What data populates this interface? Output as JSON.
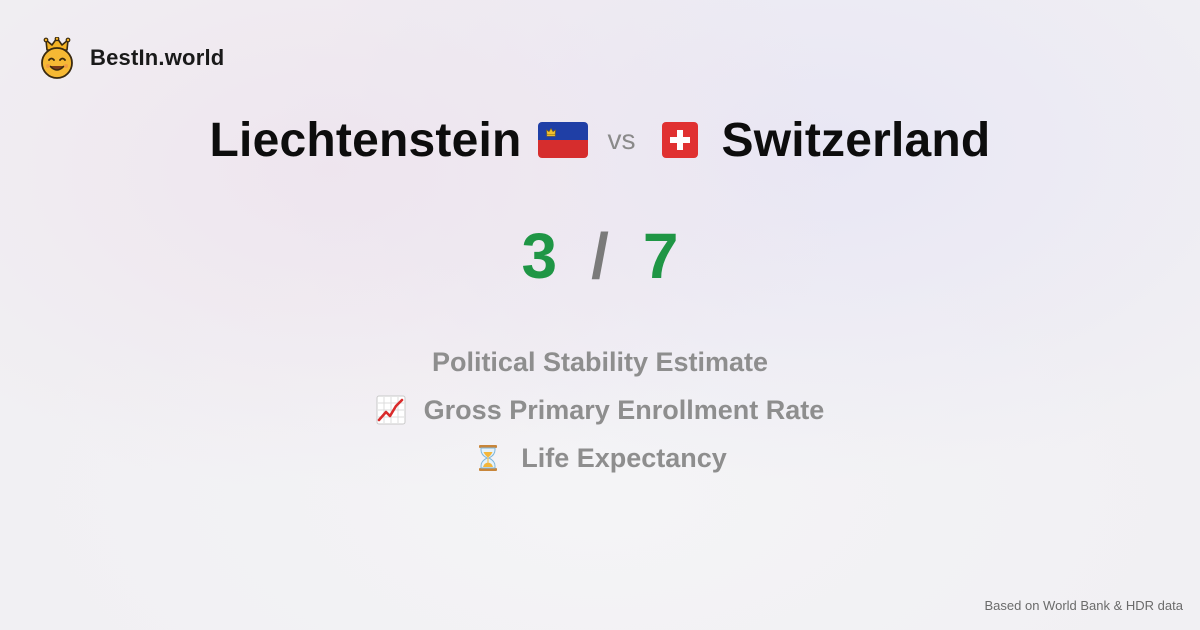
{
  "brand": {
    "name": "BestIn.world",
    "icon": "crowned-smiley-icon"
  },
  "comparison": {
    "left_country": "Liechtenstein",
    "left_flag": "liechtenstein-flag-icon",
    "vs_label": "vs",
    "right_country": "Switzerland",
    "right_flag": "switzerland-flag-icon",
    "left_score": "3",
    "separator": "/",
    "right_score": "7"
  },
  "categories": [
    {
      "label": "Political Stability Estimate",
      "icon": ""
    },
    {
      "label": "Gross Primary Enrollment Rate",
      "icon": "chart-increasing-icon"
    },
    {
      "label": "Life Expectancy",
      "icon": "hourglass-icon"
    }
  ],
  "footer": {
    "source": "Based on World Bank & HDR data"
  },
  "colors": {
    "score": "#1f9645",
    "muted": "#8e8e8e",
    "background": "#f1f0f3"
  }
}
